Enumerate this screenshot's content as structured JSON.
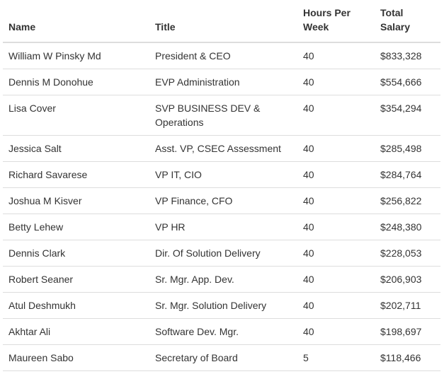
{
  "table": {
    "headers": {
      "name": "Name",
      "title": "Title",
      "hours": "Hours Per Week",
      "salary": "Total Salary"
    },
    "rows": [
      {
        "name": "William W Pinsky Md",
        "title": "President & CEO",
        "hours": "40",
        "salary": "$833,328"
      },
      {
        "name": "Dennis M Donohue",
        "title": "EVP Administration",
        "hours": "40",
        "salary": "$554,666"
      },
      {
        "name": "Lisa Cover",
        "title": "SVP BUSINESS DEV & Operations",
        "hours": "40",
        "salary": "$354,294"
      },
      {
        "name": "Jessica Salt",
        "title": "Asst. VP, CSEC Assessment",
        "hours": "40",
        "salary": "$285,498"
      },
      {
        "name": "Richard Savarese",
        "title": "VP IT, CIO",
        "hours": "40",
        "salary": "$284,764"
      },
      {
        "name": "Joshua M Kisver",
        "title": "VP Finance, CFO",
        "hours": "40",
        "salary": "$256,822"
      },
      {
        "name": "Betty Lehew",
        "title": "VP HR",
        "hours": "40",
        "salary": "$248,380"
      },
      {
        "name": "Dennis Clark",
        "title": "Dir. Of Solution Delivery",
        "hours": "40",
        "salary": "$228,053"
      },
      {
        "name": "Robert Seaner",
        "title": "Sr. Mgr. App. Dev.",
        "hours": "40",
        "salary": "$206,903"
      },
      {
        "name": "Atul Deshmukh",
        "title": "Sr. Mgr. Solution Delivery",
        "hours": "40",
        "salary": "$202,711"
      },
      {
        "name": "Akhtar Ali",
        "title": "Software Dev. Mgr.",
        "hours": "40",
        "salary": "$198,697"
      },
      {
        "name": "Maureen Sabo",
        "title": "Secretary of Board",
        "hours": "5",
        "salary": "$118,466"
      }
    ]
  }
}
